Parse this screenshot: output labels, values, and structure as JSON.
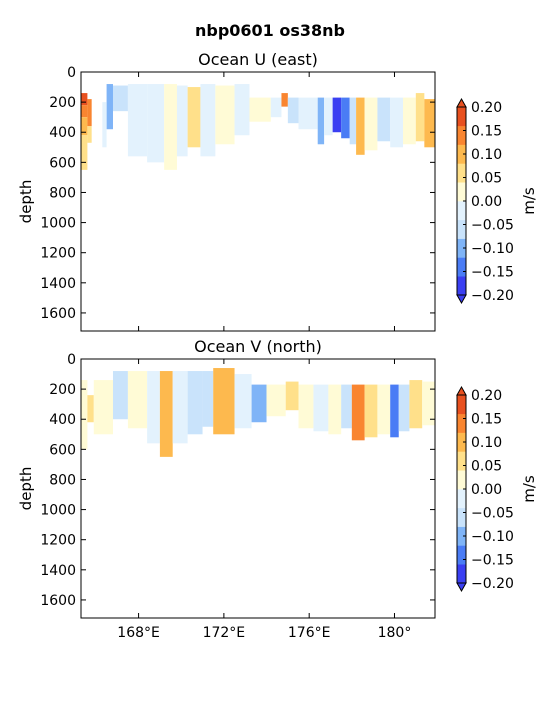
{
  "figure": {
    "suptitle": "nbp0601 os38nb"
  },
  "chart_data": [
    {
      "type": "heatmap",
      "title": "Ocean U (east)",
      "ylabel": "depth",
      "ylim": [
        1720,
        0
      ],
      "yticks": [
        0,
        200,
        400,
        600,
        800,
        1000,
        1200,
        1400,
        1600
      ],
      "xlim": [
        165.3,
        181.9
      ],
      "xticks": [
        168,
        172,
        176,
        180
      ],
      "xticklabels": [
        "168°E",
        "172°E",
        "176°E",
        "180°"
      ],
      "xticklabels_visible": false,
      "colorbar": {
        "label": "m/s",
        "ticks": [
          0.2,
          0.15,
          0.1,
          0.05,
          0.0,
          -0.05,
          -0.1,
          -0.15,
          -0.2
        ],
        "ticklabels": [
          "0.20",
          "0.15",
          "0.10",
          "0.05",
          "0.00",
          "−0.05",
          "−0.10",
          "−0.15",
          "−0.20"
        ],
        "extend": "both"
      },
      "level_colors": [
        "#3a3ff2",
        "#4a7cf5",
        "#7fb4f7",
        "#c9e3fb",
        "#e3f2fd",
        "#fffbd6",
        "#ffe08a",
        "#fdb94e",
        "#f98530",
        "#e8501f"
      ],
      "cells": [
        {
          "x": [
            165.3,
            165.6
          ],
          "depth": [
            140,
            220
          ],
          "level": 9
        },
        {
          "x": [
            165.3,
            165.6
          ],
          "depth": [
            220,
            300
          ],
          "level": 8
        },
        {
          "x": [
            165.3,
            165.6
          ],
          "depth": [
            300,
            420
          ],
          "level": 7
        },
        {
          "x": [
            165.3,
            165.6
          ],
          "depth": [
            420,
            650
          ],
          "level": 6
        },
        {
          "x": [
            165.6,
            165.8
          ],
          "depth": [
            180,
            360
          ],
          "level": 8
        },
        {
          "x": [
            165.6,
            165.8
          ],
          "depth": [
            360,
            470
          ],
          "level": 6
        },
        {
          "x": [
            166.5,
            166.8
          ],
          "depth": [
            80,
            380
          ],
          "level": 2
        },
        {
          "x": [
            166.8,
            167.5
          ],
          "depth": [
            90,
            260
          ],
          "level": 3
        },
        {
          "x": [
            166.3,
            166.5
          ],
          "depth": [
            200,
            500
          ],
          "level": 4
        },
        {
          "x": [
            167.5,
            168.4
          ],
          "depth": [
            80,
            560
          ],
          "level": 4
        },
        {
          "x": [
            168.4,
            169.2
          ],
          "depth": [
            80,
            600
          ],
          "level": 4
        },
        {
          "x": [
            169.2,
            169.8
          ],
          "depth": [
            80,
            650
          ],
          "level": 5
        },
        {
          "x": [
            169.8,
            170.3
          ],
          "depth": [
            90,
            560
          ],
          "level": 4
        },
        {
          "x": [
            170.3,
            170.9
          ],
          "depth": [
            100,
            500
          ],
          "level": 6
        },
        {
          "x": [
            170.9,
            171.6
          ],
          "depth": [
            80,
            560
          ],
          "level": 4
        },
        {
          "x": [
            171.6,
            172.5
          ],
          "depth": [
            90,
            480
          ],
          "level": 5
        },
        {
          "x": [
            172.5,
            173.2
          ],
          "depth": [
            80,
            420
          ],
          "level": 4
        },
        {
          "x": [
            173.2,
            174.2
          ],
          "depth": [
            170,
            330
          ],
          "level": 5
        },
        {
          "x": [
            174.2,
            174.7
          ],
          "depth": [
            170,
            300
          ],
          "level": 4
        },
        {
          "x": [
            174.7,
            175.0
          ],
          "depth": [
            140,
            230
          ],
          "level": 8
        },
        {
          "x": [
            175.0,
            175.5
          ],
          "depth": [
            170,
            340
          ],
          "level": 3
        },
        {
          "x": [
            175.5,
            176.4
          ],
          "depth": [
            170,
            380
          ],
          "level": 4
        },
        {
          "x": [
            176.4,
            176.7
          ],
          "depth": [
            170,
            480
          ],
          "level": 2
        },
        {
          "x": [
            176.7,
            177.1
          ],
          "depth": [
            170,
            420
          ],
          "level": 4
        },
        {
          "x": [
            177.1,
            177.5
          ],
          "depth": [
            170,
            400
          ],
          "level": 0
        },
        {
          "x": [
            177.5,
            177.9
          ],
          "depth": [
            170,
            440
          ],
          "level": 1
        },
        {
          "x": [
            177.9,
            178.2
          ],
          "depth": [
            170,
            480
          ],
          "level": 3
        },
        {
          "x": [
            178.2,
            178.6
          ],
          "depth": [
            170,
            550
          ],
          "level": 7
        },
        {
          "x": [
            178.6,
            179.2
          ],
          "depth": [
            170,
            520
          ],
          "level": 5
        },
        {
          "x": [
            179.2,
            179.8
          ],
          "depth": [
            170,
            460
          ],
          "level": 3
        },
        {
          "x": [
            179.8,
            180.4
          ],
          "depth": [
            170,
            500
          ],
          "level": 4
        },
        {
          "x": [
            180.4,
            181.0
          ],
          "depth": [
            170,
            480
          ],
          "level": 5
        },
        {
          "x": [
            181.0,
            181.4
          ],
          "depth": [
            140,
            460
          ],
          "level": 6
        },
        {
          "x": [
            181.4,
            181.9
          ],
          "depth": [
            180,
            500
          ],
          "level": 7
        }
      ]
    },
    {
      "type": "heatmap",
      "title": "Ocean V (north)",
      "ylabel": "depth",
      "ylim": [
        1720,
        0
      ],
      "yticks": [
        0,
        200,
        400,
        600,
        800,
        1000,
        1200,
        1400,
        1600
      ],
      "xlim": [
        165.3,
        181.9
      ],
      "xticks": [
        168,
        172,
        176,
        180
      ],
      "xticklabels": [
        "168°E",
        "172°E",
        "176°E",
        "180°"
      ],
      "xticklabels_visible": true,
      "colorbar": {
        "label": "m/s",
        "ticks": [
          0.2,
          0.15,
          0.1,
          0.05,
          0.0,
          -0.05,
          -0.1,
          -0.15,
          -0.2
        ],
        "ticklabels": [
          "0.20",
          "0.15",
          "0.10",
          "0.05",
          "0.00",
          "−0.05",
          "−0.10",
          "−0.15",
          "−0.20"
        ],
        "extend": "both"
      },
      "level_colors": [
        "#3a3ff2",
        "#4a7cf5",
        "#7fb4f7",
        "#c9e3fb",
        "#e3f2fd",
        "#fffbd6",
        "#ffe08a",
        "#fdb94e",
        "#f98530",
        "#e8501f"
      ],
      "cells": [
        {
          "x": [
            165.3,
            165.6
          ],
          "depth": [
            140,
            600
          ],
          "level": 5
        },
        {
          "x": [
            165.6,
            165.9
          ],
          "depth": [
            240,
            420
          ],
          "level": 6
        },
        {
          "x": [
            165.9,
            166.8
          ],
          "depth": [
            140,
            500
          ],
          "level": 5
        },
        {
          "x": [
            166.8,
            167.5
          ],
          "depth": [
            80,
            400
          ],
          "level": 3
        },
        {
          "x": [
            167.5,
            168.4
          ],
          "depth": [
            80,
            460
          ],
          "level": 5
        },
        {
          "x": [
            168.4,
            169.0
          ],
          "depth": [
            80,
            560
          ],
          "level": 4
        },
        {
          "x": [
            169.0,
            169.6
          ],
          "depth": [
            80,
            650
          ],
          "level": 7
        },
        {
          "x": [
            169.6,
            170.3
          ],
          "depth": [
            80,
            560
          ],
          "level": 4
        },
        {
          "x": [
            170.3,
            171.0
          ],
          "depth": [
            80,
            500
          ],
          "level": 3
        },
        {
          "x": [
            171.0,
            171.5
          ],
          "depth": [
            80,
            450
          ],
          "level": 3
        },
        {
          "x": [
            171.5,
            172.5
          ],
          "depth": [
            60,
            500
          ],
          "level": 7
        },
        {
          "x": [
            172.5,
            173.3
          ],
          "depth": [
            100,
            460
          ],
          "level": 4
        },
        {
          "x": [
            173.3,
            174.0
          ],
          "depth": [
            170,
            420
          ],
          "level": 2
        },
        {
          "x": [
            174.0,
            174.9
          ],
          "depth": [
            170,
            380
          ],
          "level": 5
        },
        {
          "x": [
            174.9,
            175.5
          ],
          "depth": [
            150,
            340
          ],
          "level": 6
        },
        {
          "x": [
            175.5,
            176.2
          ],
          "depth": [
            170,
            460
          ],
          "level": 5
        },
        {
          "x": [
            176.2,
            176.9
          ],
          "depth": [
            170,
            480
          ],
          "level": 4
        },
        {
          "x": [
            176.9,
            177.5
          ],
          "depth": [
            170,
            500
          ],
          "level": 5
        },
        {
          "x": [
            177.5,
            178.0
          ],
          "depth": [
            170,
            460
          ],
          "level": 3
        },
        {
          "x": [
            178.0,
            178.6
          ],
          "depth": [
            170,
            540
          ],
          "level": 8
        },
        {
          "x": [
            178.6,
            179.2
          ],
          "depth": [
            170,
            520
          ],
          "level": 6
        },
        {
          "x": [
            179.2,
            179.8
          ],
          "depth": [
            170,
            500
          ],
          "level": 5
        },
        {
          "x": [
            179.8,
            180.2
          ],
          "depth": [
            170,
            520
          ],
          "level": 1
        },
        {
          "x": [
            180.2,
            180.7
          ],
          "depth": [
            170,
            480
          ],
          "level": 3
        },
        {
          "x": [
            180.7,
            181.3
          ],
          "depth": [
            140,
            460
          ],
          "level": 6
        },
        {
          "x": [
            181.3,
            181.9
          ],
          "depth": [
            150,
            440
          ],
          "level": 5
        }
      ]
    }
  ]
}
